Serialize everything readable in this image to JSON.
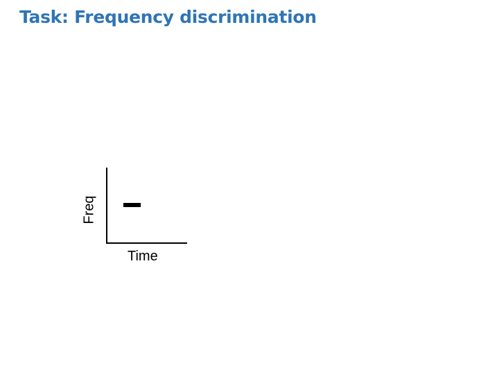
{
  "title": "Task: Frequency discrimination",
  "diagram": {
    "x_axis_label": "Time",
    "y_axis_label": "Freq"
  }
}
